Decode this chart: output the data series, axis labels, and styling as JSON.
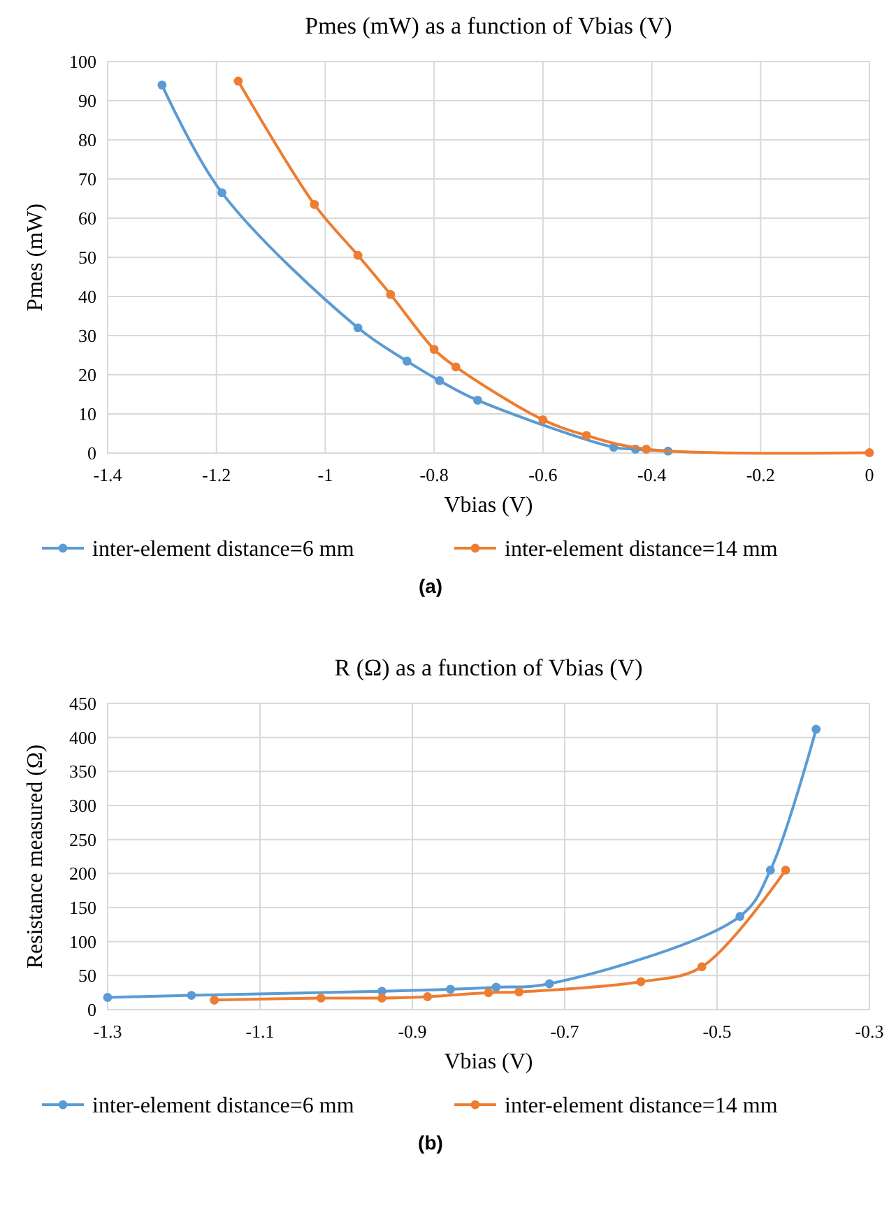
{
  "chart_data": [
    {
      "type": "line",
      "title": "Pmes (mW) as a function of Vbias (V)",
      "xlabel": "Vbias (V)",
      "ylabel": "Pmes (mW)",
      "xlim": [
        -1.4,
        0
      ],
      "xticks": [
        -1.4,
        -1.2,
        -1,
        -0.8,
        -0.6,
        -0.4,
        -0.2,
        0
      ],
      "ylim": [
        0,
        100
      ],
      "yticks": [
        0,
        10,
        20,
        30,
        40,
        50,
        60,
        70,
        80,
        90,
        100
      ],
      "grid": true,
      "legend": "bottom",
      "marker": "circle",
      "line_style": "solid",
      "annotations": [
        "(a)"
      ],
      "series": [
        {
          "name": "inter-element distance=6 mm",
          "color": "#5b9bd5",
          "x": [
            -1.3,
            -1.19,
            -0.94,
            -0.85,
            -0.79,
            -0.72,
            -0.47,
            -0.43,
            -0.37
          ],
          "values": [
            94,
            66.5,
            32,
            23.5,
            18.5,
            13.5,
            1.5,
            1,
            0.5
          ]
        },
        {
          "name": "inter-element distance=14 mm",
          "color": "#ed7d31",
          "x": [
            -1.16,
            -1.02,
            -0.94,
            -0.88,
            -0.8,
            -0.76,
            -0.6,
            -0.52,
            -0.41,
            0
          ],
          "values": [
            95,
            63.5,
            50.5,
            40.5,
            26.5,
            22,
            8.5,
            4.5,
            1,
            0.1
          ]
        }
      ]
    },
    {
      "type": "line",
      "title": "R (Ω) as a function of Vbias (V)",
      "xlabel": "Vbias (V)",
      "ylabel": "Resistance measured (Ω)",
      "xlim": [
        -1.3,
        -0.3
      ],
      "xticks": [
        -1.3,
        -1.1,
        -0.9,
        -0.7,
        -0.5,
        -0.3
      ],
      "ylim": [
        0,
        450
      ],
      "yticks": [
        0,
        50,
        100,
        150,
        200,
        250,
        300,
        350,
        400,
        450
      ],
      "grid": true,
      "legend": "bottom",
      "marker": "circle",
      "line_style": "solid",
      "annotations": [
        "(b)"
      ],
      "series": [
        {
          "name": "inter-element distance=6 mm",
          "color": "#5b9bd5",
          "x": [
            -1.3,
            -1.19,
            -0.94,
            -0.85,
            -0.79,
            -0.72,
            -0.47,
            -0.43,
            -0.37
          ],
          "values": [
            18,
            21,
            27,
            30,
            33,
            38,
            137,
            205,
            412
          ]
        },
        {
          "name": "inter-element distance=14 mm",
          "color": "#ed7d31",
          "x": [
            -1.16,
            -1.02,
            -0.94,
            -0.88,
            -0.8,
            -0.76,
            -0.6,
            -0.52,
            -0.41
          ],
          "values": [
            14,
            17,
            17,
            19,
            25,
            26,
            41,
            63,
            205
          ]
        }
      ]
    }
  ]
}
